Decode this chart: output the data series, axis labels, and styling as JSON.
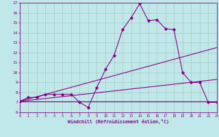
{
  "xlabel": "Windchill (Refroidissement éolien,°C)",
  "bg_color": "#c0e8e8",
  "line_color": "#880088",
  "grid_color": "#a0c0c0",
  "xlim": [
    0,
    23
  ],
  "ylim": [
    6,
    17
  ],
  "xticks": [
    0,
    1,
    2,
    3,
    4,
    5,
    6,
    7,
    8,
    9,
    10,
    11,
    12,
    13,
    14,
    15,
    16,
    17,
    18,
    19,
    20,
    21,
    22,
    23
  ],
  "yticks": [
    6,
    7,
    8,
    9,
    10,
    11,
    12,
    13,
    14,
    15,
    16,
    17
  ],
  "line1_x": [
    0,
    1,
    2,
    3,
    4,
    5,
    6,
    7,
    8,
    9,
    10,
    11,
    12,
    13,
    14,
    15,
    16,
    17,
    18,
    19,
    20,
    21,
    22,
    23
  ],
  "line1_y": [
    7.1,
    7.5,
    7.5,
    7.8,
    7.8,
    7.8,
    7.8,
    7.0,
    6.5,
    8.5,
    10.3,
    11.7,
    14.3,
    15.5,
    16.9,
    15.2,
    15.3,
    14.4,
    14.3,
    10.0,
    9.0,
    9.0,
    7.0,
    7.0
  ],
  "line2_x": [
    0,
    23
  ],
  "line2_y": [
    7.1,
    12.5
  ],
  "line3_x": [
    0,
    23
  ],
  "line3_y": [
    7.1,
    9.3
  ],
  "line4_x": [
    0,
    23
  ],
  "line4_y": [
    7.1,
    7.1
  ]
}
